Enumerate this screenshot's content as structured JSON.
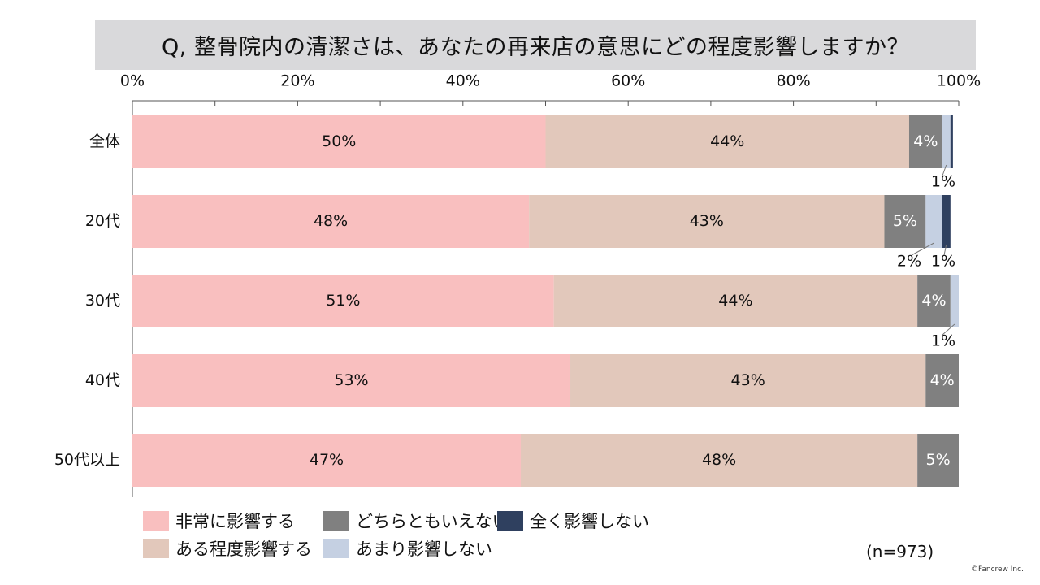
{
  "title": "Q, 整骨院内の清潔さは、あなたの再来店の意思にどの程度影響しますか？",
  "n_label": "(n=973)",
  "copyright": "©Fancrew Inc.",
  "chart_data": {
    "type": "bar",
    "orientation": "horizontal",
    "stacked": true,
    "x_ticks": [
      "0%",
      "20%",
      "40%",
      "60%",
      "80%",
      "100%"
    ],
    "xlim": [
      0,
      100
    ],
    "grid": false,
    "legend_position": "bottom-left",
    "categories": [
      "全体",
      "20代",
      "30代",
      "40代",
      "50代以上"
    ],
    "series": [
      {
        "name": "非常に影響する",
        "color": "#f9bfbf",
        "values": [
          50,
          48,
          51,
          53,
          47
        ]
      },
      {
        "name": "ある程度影響する",
        "color": "#e2c8bb",
        "values": [
          44,
          43,
          44,
          43,
          48
        ]
      },
      {
        "name": "どちらともいえない",
        "color": "#808080",
        "values": [
          4,
          5,
          4,
          4,
          5
        ]
      },
      {
        "name": "あまり影響しない",
        "color": "#c5d0e2",
        "values": [
          1,
          2,
          1,
          0,
          0.5
        ]
      },
      {
        "name": "全く影響しない",
        "color": "#2f405f",
        "values": [
          0.3,
          1,
          0,
          0,
          0
        ]
      }
    ],
    "data_labels": [
      [
        "50%",
        "44%",
        "4%",
        "1%",
        ""
      ],
      [
        "48%",
        "43%",
        "5%",
        "2%",
        "1%"
      ],
      [
        "51%",
        "44%",
        "4%",
        "1%",
        ""
      ],
      [
        "53%",
        "43%",
        "4%",
        "",
        ""
      ],
      [
        "47%",
        "48%",
        "5%",
        "",
        ""
      ]
    ]
  },
  "legend": {
    "items": [
      {
        "label": "非常に影響する",
        "color": "#f9bfbf"
      },
      {
        "label": "どちらともいえない",
        "color": "#808080"
      },
      {
        "label": "全く影響しない",
        "color": "#2f405f"
      },
      {
        "label": "ある程度影響する",
        "color": "#e2c8bb"
      },
      {
        "label": "あまり影響しない",
        "color": "#c5d0e2"
      }
    ]
  }
}
